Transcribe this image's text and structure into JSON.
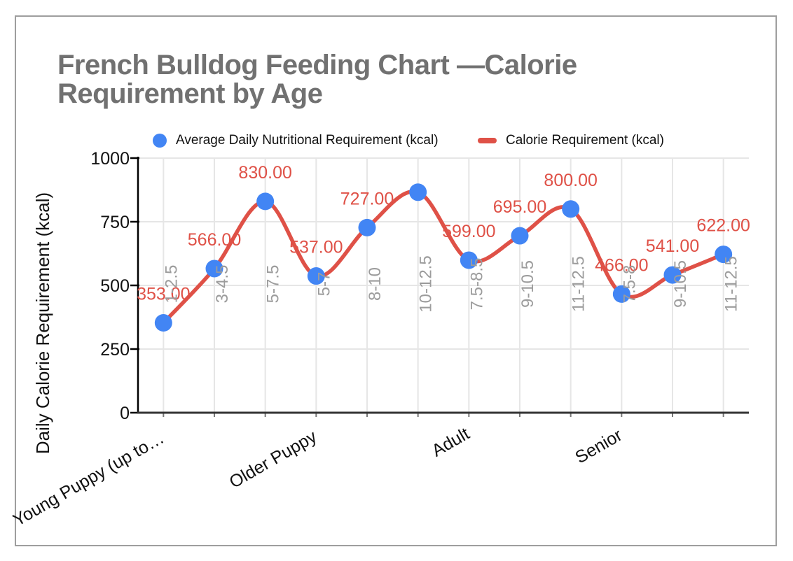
{
  "title": "French Bulldog Feeding Chart —Calorie Requirement by Age",
  "legend": {
    "items": [
      {
        "label": "Average Daily Nutritional Requirement (kcal)",
        "marker": "circle",
        "color": "#4285f4"
      },
      {
        "label": "Calorie Requirement (kcal)",
        "marker": "line",
        "color": "#df5147"
      }
    ]
  },
  "chart_data": {
    "type": "line",
    "title": "French Bulldog Feeding Chart —Calorie Requirement by Age",
    "xlabel": "",
    "ylabel": "Daily Calorie Requirement (kcal)",
    "ylim": [
      0,
      1000
    ],
    "yticks": [
      0,
      250,
      500,
      750,
      1000
    ],
    "grid": true,
    "legend_position": "top",
    "group_labels": [
      "Young Puppy (up to…",
      "Older Puppy",
      "Adult",
      "Senior"
    ],
    "group_spans": [
      [
        0,
        2
      ],
      [
        3,
        5
      ],
      [
        6,
        8
      ],
      [
        9,
        11
      ]
    ],
    "categories": [
      "1-2.5",
      "3-4.5",
      "5-7.5",
      "5-7",
      "8-10",
      "10-12.5",
      "7.5-8.5",
      "9-10.5",
      "11-12.5",
      "7.5-8",
      "9-10.5",
      "11-12.5"
    ],
    "series": [
      {
        "name": "Average Daily Nutritional Requirement (kcal)",
        "style": "points",
        "color": "#4285f4",
        "values": [
          353,
          566,
          830,
          537,
          727,
          866,
          599,
          695,
          800,
          466,
          541,
          622
        ]
      },
      {
        "name": "Calorie Requirement (kcal)",
        "style": "smooth-line",
        "color": "#df5147",
        "values": [
          353,
          566,
          830,
          537,
          727,
          866,
          599,
          695,
          800,
          466,
          541,
          622
        ]
      }
    ],
    "point_labels": [
      "353.00",
      "566.00",
      "830.00",
      "537.00",
      "727.00",
      "",
      "599.00",
      "695.00",
      "800.00",
      "466.00",
      "541.00",
      "622.00"
    ],
    "colors": {
      "point_fill": "#4285f4",
      "line_stroke": "#df5147",
      "data_label_text": "#df5147",
      "category_label_text": "#9c9c9c",
      "axis_text": "#111111",
      "gridline": "#e6e6e6",
      "title_text": "#717171"
    }
  }
}
